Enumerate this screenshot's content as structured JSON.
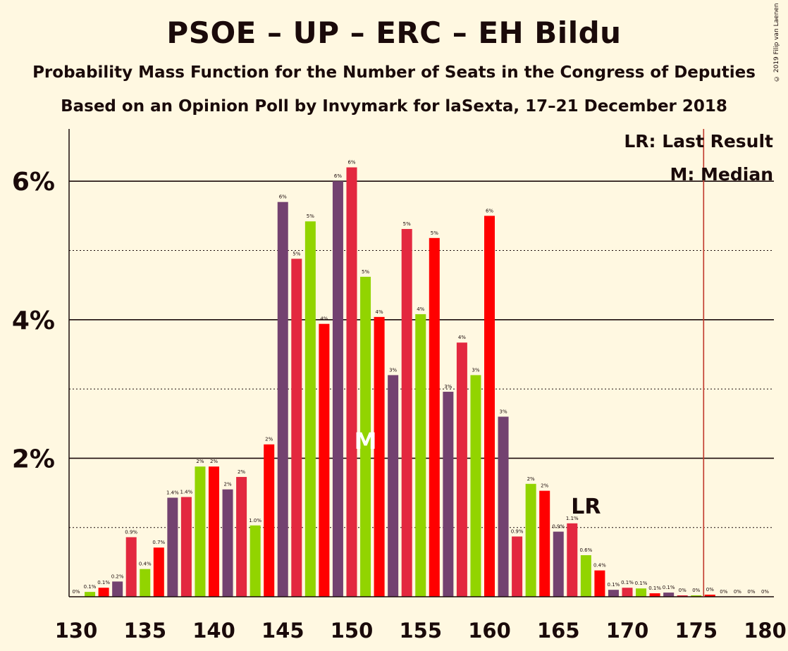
{
  "title": "PSOE – UP – ERC – EH Bildu",
  "subtitle": "Probability Mass Function for the Number of Seats in the Congress of Deputies",
  "source": "Based on an Opinion Poll by Invymark for laSexta, 17–21 December 2018",
  "copyright": "© 2019 Filip van Laenen",
  "legend": {
    "last_result": "LR: Last Result",
    "median": "M: Median"
  },
  "markers": {
    "median_label": "M",
    "last_result_label": "LR"
  },
  "colors": {
    "background": "#FFF8E1",
    "purple": "#734270",
    "red_pink": "#E3283F",
    "red": "#FF0000",
    "green": "#92D400",
    "last_result_line": "#C0392B"
  },
  "chart_data": {
    "type": "bar",
    "xlabel": "",
    "ylabel": "",
    "xlim": [
      130,
      180
    ],
    "ylim": [
      0,
      6.75
    ],
    "x_ticks": [
      "130",
      "135",
      "140",
      "145",
      "150",
      "155",
      "160",
      "165",
      "170",
      "175",
      "180"
    ],
    "y_ticks": [
      {
        "value": 2,
        "label": "2%"
      },
      {
        "value": 4,
        "label": "4%"
      },
      {
        "value": 6,
        "label": "6%"
      }
    ],
    "median": 151,
    "last_result": 176,
    "grid": "dotted lines at every 1%, solid at labelled ticks",
    "bars": [
      {
        "seats": 130,
        "value": 0.0,
        "label": "0%",
        "color": "purple"
      },
      {
        "seats": 131,
        "value": 0.07,
        "label": "0.1%",
        "color": "green"
      },
      {
        "seats": 132,
        "value": 0.13,
        "label": "0.1%",
        "color": "red"
      },
      {
        "seats": 133,
        "value": 0.22,
        "label": "0.2%",
        "color": "purple"
      },
      {
        "seats": 134,
        "value": 0.86,
        "label": "0.9%",
        "color": "red_pink"
      },
      {
        "seats": 135,
        "value": 0.4,
        "label": "0.4%",
        "color": "green"
      },
      {
        "seats": 136,
        "value": 0.71,
        "label": "0.7%",
        "color": "red"
      },
      {
        "seats": 137,
        "value": 1.43,
        "label": "1.4%",
        "color": "purple"
      },
      {
        "seats": 138,
        "value": 1.44,
        "label": "1.4%",
        "color": "red_pink"
      },
      {
        "seats": 139,
        "value": 1.88,
        "label": "2%",
        "color": "green"
      },
      {
        "seats": 140,
        "value": 1.88,
        "label": "2%",
        "color": "red"
      },
      {
        "seats": 141,
        "value": 1.55,
        "label": "2%",
        "color": "purple"
      },
      {
        "seats": 142,
        "value": 1.73,
        "label": "2%",
        "color": "red_pink"
      },
      {
        "seats": 143,
        "value": 1.03,
        "label": "1.0%",
        "color": "green"
      },
      {
        "seats": 144,
        "value": 2.2,
        "label": "2%",
        "color": "red"
      },
      {
        "seats": 145,
        "value": 5.7,
        "label": "6%",
        "color": "purple"
      },
      {
        "seats": 146,
        "value": 4.88,
        "label": "5%",
        "color": "red_pink"
      },
      {
        "seats": 147,
        "value": 5.42,
        "label": "5%",
        "color": "green"
      },
      {
        "seats": 148,
        "value": 3.94,
        "label": "4%",
        "color": "red"
      },
      {
        "seats": 149,
        "value": 6.0,
        "label": "6%",
        "color": "purple"
      },
      {
        "seats": 150,
        "value": 6.2,
        "label": "6%",
        "color": "red_pink"
      },
      {
        "seats": 151,
        "value": 4.62,
        "label": "5%",
        "color": "green"
      },
      {
        "seats": 152,
        "value": 4.04,
        "label": "4%",
        "color": "red"
      },
      {
        "seats": 153,
        "value": 3.2,
        "label": "3%",
        "color": "purple"
      },
      {
        "seats": 154,
        "value": 5.31,
        "label": "5%",
        "color": "red_pink"
      },
      {
        "seats": 155,
        "value": 4.08,
        "label": "4%",
        "color": "green"
      },
      {
        "seats": 156,
        "value": 5.18,
        "label": "5%",
        "color": "red"
      },
      {
        "seats": 157,
        "value": 2.96,
        "label": "3%",
        "color": "purple"
      },
      {
        "seats": 158,
        "value": 3.67,
        "label": "4%",
        "color": "red_pink"
      },
      {
        "seats": 159,
        "value": 3.2,
        "label": "3%",
        "color": "green"
      },
      {
        "seats": 160,
        "value": 5.5,
        "label": "6%",
        "color": "red"
      },
      {
        "seats": 161,
        "value": 2.6,
        "label": "3%",
        "color": "purple"
      },
      {
        "seats": 162,
        "value": 0.87,
        "label": "0.9%",
        "color": "red_pink"
      },
      {
        "seats": 163,
        "value": 1.63,
        "label": "2%",
        "color": "green"
      },
      {
        "seats": 164,
        "value": 1.53,
        "label": "2%",
        "color": "red"
      },
      {
        "seats": 165,
        "value": 0.94,
        "label": "0.9%",
        "color": "purple"
      },
      {
        "seats": 166,
        "value": 1.06,
        "label": "1.1%",
        "color": "red_pink"
      },
      {
        "seats": 167,
        "value": 0.6,
        "label": "0.6%",
        "color": "green"
      },
      {
        "seats": 168,
        "value": 0.38,
        "label": "0.4%",
        "color": "red"
      },
      {
        "seats": 169,
        "value": 0.1,
        "label": "0.1%",
        "color": "purple"
      },
      {
        "seats": 170,
        "value": 0.13,
        "label": "0.1%",
        "color": "red_pink"
      },
      {
        "seats": 171,
        "value": 0.12,
        "label": "0.1%",
        "color": "green"
      },
      {
        "seats": 172,
        "value": 0.05,
        "label": "0.1%",
        "color": "red"
      },
      {
        "seats": 173,
        "value": 0.06,
        "label": "0.1%",
        "color": "purple"
      },
      {
        "seats": 174,
        "value": 0.02,
        "label": "0%",
        "color": "red_pink"
      },
      {
        "seats": 175,
        "value": 0.02,
        "label": "0%",
        "color": "green"
      },
      {
        "seats": 176,
        "value": 0.03,
        "label": "0%",
        "color": "red"
      },
      {
        "seats": 177,
        "value": 0.0,
        "label": "0%",
        "color": "purple"
      },
      {
        "seats": 178,
        "value": 0.0,
        "label": "0%",
        "color": "red_pink"
      },
      {
        "seats": 179,
        "value": 0.0,
        "label": "0%",
        "color": "green"
      },
      {
        "seats": 180,
        "value": 0.0,
        "label": "0%",
        "color": "red"
      }
    ]
  }
}
